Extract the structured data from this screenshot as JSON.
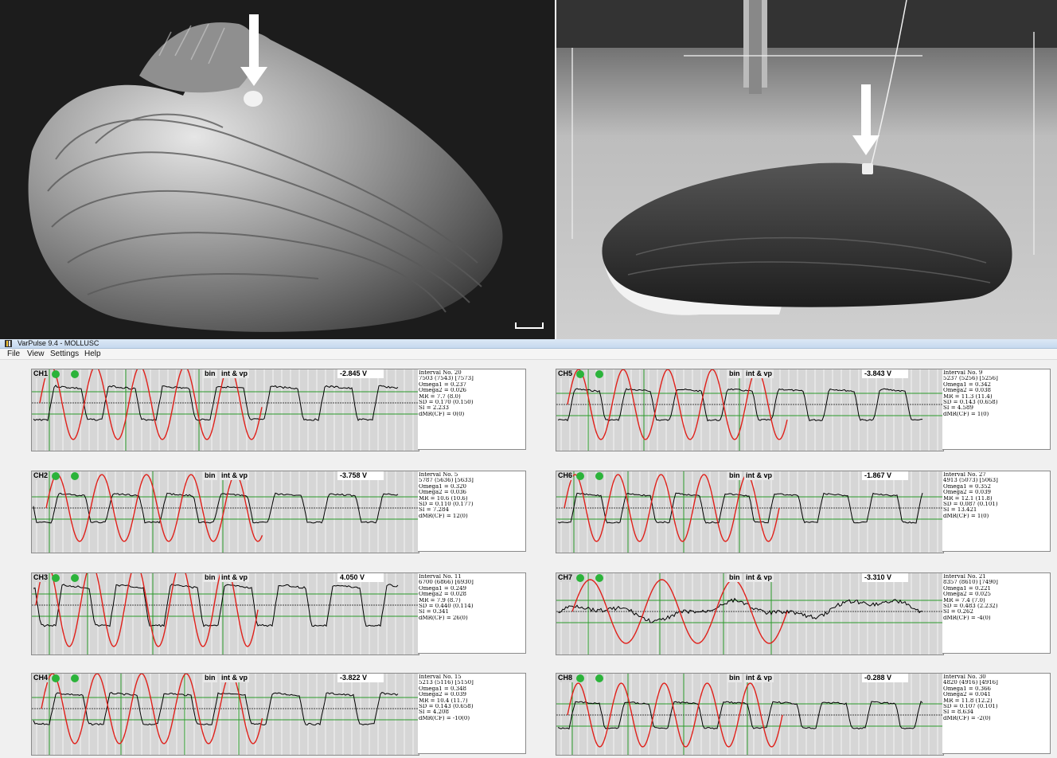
{
  "window": {
    "title": "VarPulse 9.4 - MOLLUSC"
  },
  "menu": [
    {
      "label": "File"
    },
    {
      "label": "View"
    },
    {
      "label": "Settings"
    },
    {
      "label": "Help"
    }
  ],
  "photos": {
    "left": {
      "subject": "mussel-shell",
      "marker": "arrow-pointing-to-sensor"
    },
    "right": {
      "subject": "mussel-in-aquarium",
      "marker": "arrow-pointing-to-sensor"
    }
  },
  "channels": [
    {
      "name": "CH1",
      "bin": "bin",
      "intvp": "int & vp",
      "voltage": "-2.845 V",
      "stats": [
        "Interval No. 20",
        "7503 (7543) [7573]",
        "Omega1 = 0.237",
        "Omega2 = 0.026",
        "MR = 7.7 (8.0)",
        "SD = 0.170 (0.150)",
        "SI = 2.233",
        "dMR(CF) = 0(0)"
      ]
    },
    {
      "name": "CH2",
      "bin": "bin",
      "intvp": "int & vp",
      "voltage": "-3.758 V",
      "stats": [
        "Interval No. 5",
        "5787 (5636) [5633]",
        "Omega1 = 0.320",
        "Omega2 = 0.036",
        "MR = 10.6 (10.6)",
        "SD = 0.110 (0.177)",
        "SI = 7.284",
        "dMR(CF) = 12(0)"
      ]
    },
    {
      "name": "CH3",
      "bin": "bin",
      "intvp": "int & vp",
      "voltage": "4.050 V",
      "stats": [
        "Interval No. 11",
        "6700 (6866) [6930]",
        "Omega1 = 0.249",
        "Omega2 = 0.028",
        "MR = 7.9 (8.7)",
        "SD = 0.440 (0.114)",
        "SI = 0.341",
        "dMR(CF) = 26(0)"
      ]
    },
    {
      "name": "CH4",
      "bin": "bin",
      "intvp": "int & vp",
      "voltage": "-3.822 V",
      "stats": [
        "Interval No. 15",
        "5213 (5116) [5150]",
        "Omega1 = 0.348",
        "Omega2 = 0.039",
        "MR = 10.4 (11.7)",
        "SD = 0.143 (0.658)",
        "SI = 4.208",
        "dMR(CF) = -10(0)"
      ]
    },
    {
      "name": "CH5",
      "bin": "bin",
      "intvp": "int & vp",
      "voltage": "-3.843 V",
      "stats": [
        "Interval No. 9",
        "5237 (5256) [5256]",
        "Omega1 = 0.342",
        "Omega2 = 0.038",
        "MR = 11.3 (11.4)",
        "SD = 0.143 (0.658)",
        "SI = 4.589",
        "dMR(CF) = 1(0)"
      ]
    },
    {
      "name": "CH6",
      "bin": "bin",
      "intvp": "int & vp",
      "voltage": "-1.867 V",
      "stats": [
        "Interval No. 27",
        "4913 (5073) [5063]",
        "Omega1 = 0.352",
        "Omega2 = 0.039",
        "MR = 12.1 (11.8)",
        "SD = 0.087 (0.101)",
        "SI = 13.421",
        "dMR(CF) = 1(0)"
      ]
    },
    {
      "name": "CH7",
      "bin": "bin",
      "intvp": "int & vp",
      "voltage": "-3.310 V",
      "stats": [
        "Interval No. 21",
        "8357 (8610) [7490]",
        "Omega1 = 0.221",
        "Omega2 = 0.025",
        "MR = 7.4 (7.0)",
        "SD = 0.483 (2.232)",
        "SI = 0.262",
        "dMR(CF) = -4(0)"
      ]
    },
    {
      "name": "CH8",
      "bin": "bin",
      "intvp": "int & vp",
      "voltage": "-0.288 V",
      "stats": [
        "Interval No. 30",
        "4820 (4916) [4916]",
        "Omega1 = 0.366",
        "Omega2 = 0.041",
        "MR = 11.8 (12.2)",
        "SD = 0.107 (0.101)",
        "SI = 8.634",
        "dMR(CF) = -2(0)"
      ]
    }
  ]
}
